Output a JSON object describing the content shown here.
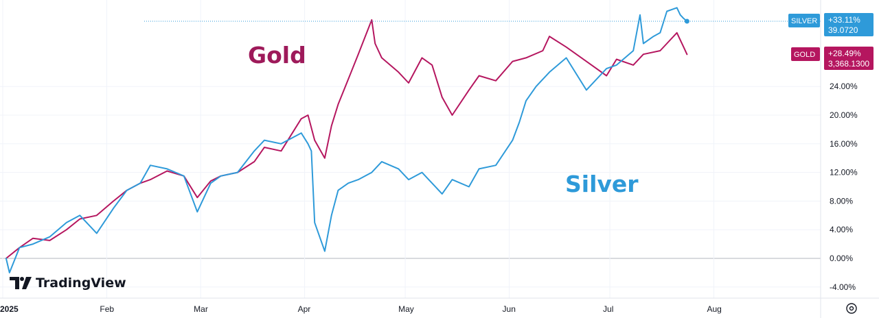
{
  "chart_data": {
    "type": "line",
    "title": "",
    "xlabel": "",
    "ylabel": "",
    "ylim": [
      -5.5,
      35.5
    ],
    "grid": true,
    "x_tick_labels": [
      "2025",
      "Feb",
      "Mar",
      "Apr",
      "May",
      "Jun",
      "Jul",
      "Aug"
    ],
    "y_tick_labels": [
      "-4.00%",
      "0.00%",
      "4.00%",
      "8.00%",
      "12.00%",
      "16.00%",
      "20.00%",
      "24.00%"
    ],
    "y_ticks": [
      -4,
      0,
      4,
      8,
      12,
      16,
      20,
      24
    ],
    "series": [
      {
        "name": "Gold",
        "color": "#b5165f",
        "label_text": "GOLD",
        "change_text": "+28.49%",
        "price_text": "3,368.1300",
        "dates": [
          "2025-01-02",
          "2025-01-06",
          "2025-01-10",
          "2025-01-15",
          "2025-01-20",
          "2025-01-24",
          "2025-01-29",
          "2025-02-03",
          "2025-02-07",
          "2025-02-11",
          "2025-02-14",
          "2025-02-19",
          "2025-02-24",
          "2025-02-28",
          "2025-03-04",
          "2025-03-07",
          "2025-03-12",
          "2025-03-17",
          "2025-03-20",
          "2025-03-25",
          "2025-03-31",
          "2025-04-02",
          "2025-04-04",
          "2025-04-07",
          "2025-04-09",
          "2025-04-11",
          "2025-04-14",
          "2025-04-17",
          "2025-04-21",
          "2025-04-22",
          "2025-04-24",
          "2025-04-29",
          "2025-05-02",
          "2025-05-06",
          "2025-05-09",
          "2025-05-12",
          "2025-05-15",
          "2025-05-20",
          "2025-05-23",
          "2025-05-28",
          "2025-06-02",
          "2025-06-06",
          "2025-06-11",
          "2025-06-13",
          "2025-06-18",
          "2025-06-24",
          "2025-06-30",
          "2025-07-03",
          "2025-07-08",
          "2025-07-11",
          "2025-07-16",
          "2025-07-18",
          "2025-07-21",
          "2025-07-22",
          "2025-07-23",
          "2025-07-24"
        ],
        "values": [
          0.0,
          1.5,
          2.8,
          2.5,
          4.0,
          5.5,
          6.0,
          8.0,
          9.5,
          10.5,
          11.0,
          12.2,
          11.5,
          8.5,
          10.8,
          11.5,
          12.0,
          13.5,
          15.5,
          15.0,
          19.5,
          20.0,
          16.5,
          14.0,
          18.5,
          21.5,
          25.0,
          28.5,
          33.3,
          30.0,
          28.0,
          26.0,
          24.5,
          28.0,
          27.0,
          22.5,
          20.0,
          23.5,
          25.5,
          24.8,
          27.5,
          28.0,
          29.0,
          31.0,
          29.5,
          27.5,
          25.5,
          27.8,
          27.0,
          28.5,
          29.0,
          30.0,
          31.5,
          30.5,
          29.5,
          28.49
        ]
      },
      {
        "name": "Silver",
        "color": "#2e9ad9",
        "label_text": "SILVER",
        "change_text": "+33.11%",
        "price_text": "39.0720",
        "dates": [
          "2025-01-02",
          "2025-01-03",
          "2025-01-06",
          "2025-01-10",
          "2025-01-15",
          "2025-01-20",
          "2025-01-24",
          "2025-01-29",
          "2025-02-03",
          "2025-02-07",
          "2025-02-11",
          "2025-02-14",
          "2025-02-19",
          "2025-02-24",
          "2025-02-28",
          "2025-03-04",
          "2025-03-07",
          "2025-03-12",
          "2025-03-17",
          "2025-03-20",
          "2025-03-25",
          "2025-03-31",
          "2025-04-02",
          "2025-04-03",
          "2025-04-04",
          "2025-04-07",
          "2025-04-08",
          "2025-04-09",
          "2025-04-11",
          "2025-04-14",
          "2025-04-17",
          "2025-04-21",
          "2025-04-24",
          "2025-04-29",
          "2025-05-02",
          "2025-05-06",
          "2025-05-09",
          "2025-05-12",
          "2025-05-15",
          "2025-05-20",
          "2025-05-23",
          "2025-05-28",
          "2025-06-02",
          "2025-06-04",
          "2025-06-06",
          "2025-06-09",
          "2025-06-13",
          "2025-06-18",
          "2025-06-24",
          "2025-06-30",
          "2025-07-03",
          "2025-07-08",
          "2025-07-10",
          "2025-07-11",
          "2025-07-14",
          "2025-07-16",
          "2025-07-18",
          "2025-07-21",
          "2025-07-22",
          "2025-07-23",
          "2025-07-24"
        ],
        "values": [
          0.0,
          -2.0,
          1.5,
          2.0,
          3.0,
          5.0,
          6.0,
          3.5,
          7.0,
          9.5,
          10.5,
          13.0,
          12.5,
          11.5,
          6.5,
          10.5,
          11.5,
          12.0,
          15.0,
          16.5,
          16.0,
          17.5,
          16.0,
          15.0,
          5.0,
          1.0,
          3.5,
          6.0,
          9.5,
          10.5,
          11.0,
          12.0,
          13.5,
          12.5,
          11.0,
          12.0,
          10.5,
          9.0,
          11.0,
          10.0,
          12.5,
          13.0,
          16.5,
          19.0,
          22.0,
          24.0,
          26.0,
          28.0,
          23.5,
          26.5,
          27.0,
          29.0,
          34.0,
          30.0,
          31.0,
          31.5,
          34.5,
          35.0,
          34.0,
          33.5,
          33.11
        ]
      }
    ],
    "annotations": [
      {
        "text": "Gold",
        "color": "#9e1a5a"
      },
      {
        "text": "Silver",
        "color": "#2e9ad9"
      }
    ]
  },
  "branding": {
    "logo_text": "TradingView",
    "logo_mark": "TV"
  },
  "controls": {
    "settings_icon": "gear-icon"
  }
}
